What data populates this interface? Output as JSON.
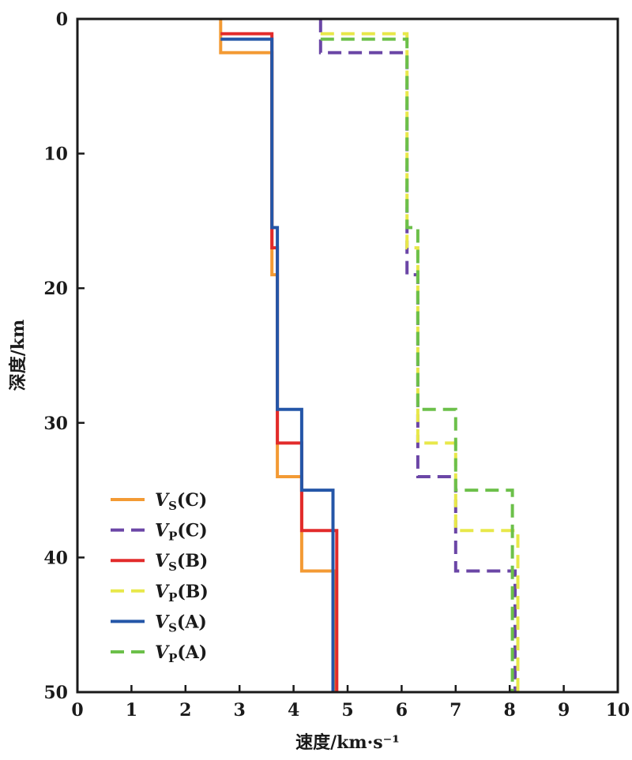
{
  "chart_data": {
    "type": "line",
    "xlabel": "速度/km·s⁻¹",
    "ylabel": "深度/km",
    "xlim": [
      0,
      10
    ],
    "ylim": [
      0,
      50
    ],
    "y_inverted": true,
    "xticks": [
      "0",
      "1",
      "2",
      "3",
      "4",
      "5",
      "6",
      "7",
      "8",
      "9",
      "10"
    ],
    "yticks": [
      "0",
      "10",
      "20",
      "30",
      "40",
      "50"
    ],
    "legend_position": "bottom-left",
    "series": [
      {
        "name": "Vs(C)",
        "base": "V",
        "sub": "S",
        "suffix": "(C)",
        "color": "#f39a34",
        "dash": false,
        "layers": [
          {
            "top": 0,
            "bottom": 2.5,
            "v": 2.65
          },
          {
            "top": 2.5,
            "bottom": 19,
            "v": 3.6
          },
          {
            "top": 19,
            "bottom": 34,
            "v": 3.7
          },
          {
            "top": 34,
            "bottom": 41,
            "v": 4.15
          },
          {
            "top": 41,
            "bottom": 50,
            "v": 4.78
          }
        ]
      },
      {
        "name": "Vp(C)",
        "base": "V",
        "sub": "P",
        "suffix": "(C)",
        "color": "#6b46a6",
        "dash": true,
        "layers": [
          {
            "top": 0,
            "bottom": 2.5,
            "v": 4.5
          },
          {
            "top": 2.5,
            "bottom": 19,
            "v": 6.1
          },
          {
            "top": 19,
            "bottom": 34,
            "v": 6.3
          },
          {
            "top": 34,
            "bottom": 41,
            "v": 7.0
          },
          {
            "top": 41,
            "bottom": 50,
            "v": 8.1
          }
        ]
      },
      {
        "name": "Vs(B)",
        "base": "V",
        "sub": "S",
        "suffix": "(B)",
        "color": "#e22b2b",
        "dash": false,
        "layers": [
          {
            "top": 1.1,
            "bottom": 17,
            "v": 3.6
          },
          {
            "top": 17,
            "bottom": 31.5,
            "v": 3.7
          },
          {
            "top": 31.5,
            "bottom": 38,
            "v": 4.15
          },
          {
            "top": 38,
            "bottom": 50,
            "v": 4.8
          }
        ],
        "top_left": 2.65
      },
      {
        "name": "Vp(B)",
        "base": "V",
        "sub": "P",
        "suffix": "(B)",
        "color": "#e8e84a",
        "dash": true,
        "layers": [
          {
            "top": 1.1,
            "bottom": 17,
            "v": 6.1
          },
          {
            "top": 17,
            "bottom": 31.5,
            "v": 6.3
          },
          {
            "top": 31.5,
            "bottom": 38,
            "v": 7.0
          },
          {
            "top": 38,
            "bottom": 50,
            "v": 8.15
          }
        ],
        "top_left": 4.5
      },
      {
        "name": "Vs(A)",
        "base": "V",
        "sub": "S",
        "suffix": "(A)",
        "color": "#2456a8",
        "dash": false,
        "layers": [
          {
            "top": 1.5,
            "bottom": 15.5,
            "v": 3.6
          },
          {
            "top": 15.5,
            "bottom": 29,
            "v": 3.7
          },
          {
            "top": 29,
            "bottom": 35,
            "v": 4.15
          },
          {
            "top": 35,
            "bottom": 50,
            "v": 4.73
          }
        ],
        "top_left": 2.65
      },
      {
        "name": "Vp(A)",
        "base": "V",
        "sub": "P",
        "suffix": "(A)",
        "color": "#6cc04a",
        "dash": true,
        "layers": [
          {
            "top": 1.5,
            "bottom": 15.5,
            "v": 6.1
          },
          {
            "top": 15.5,
            "bottom": 29,
            "v": 6.3
          },
          {
            "top": 29,
            "bottom": 35,
            "v": 7.0
          },
          {
            "top": 35,
            "bottom": 50,
            "v": 8.05
          }
        ],
        "top_left": 4.5
      }
    ]
  }
}
